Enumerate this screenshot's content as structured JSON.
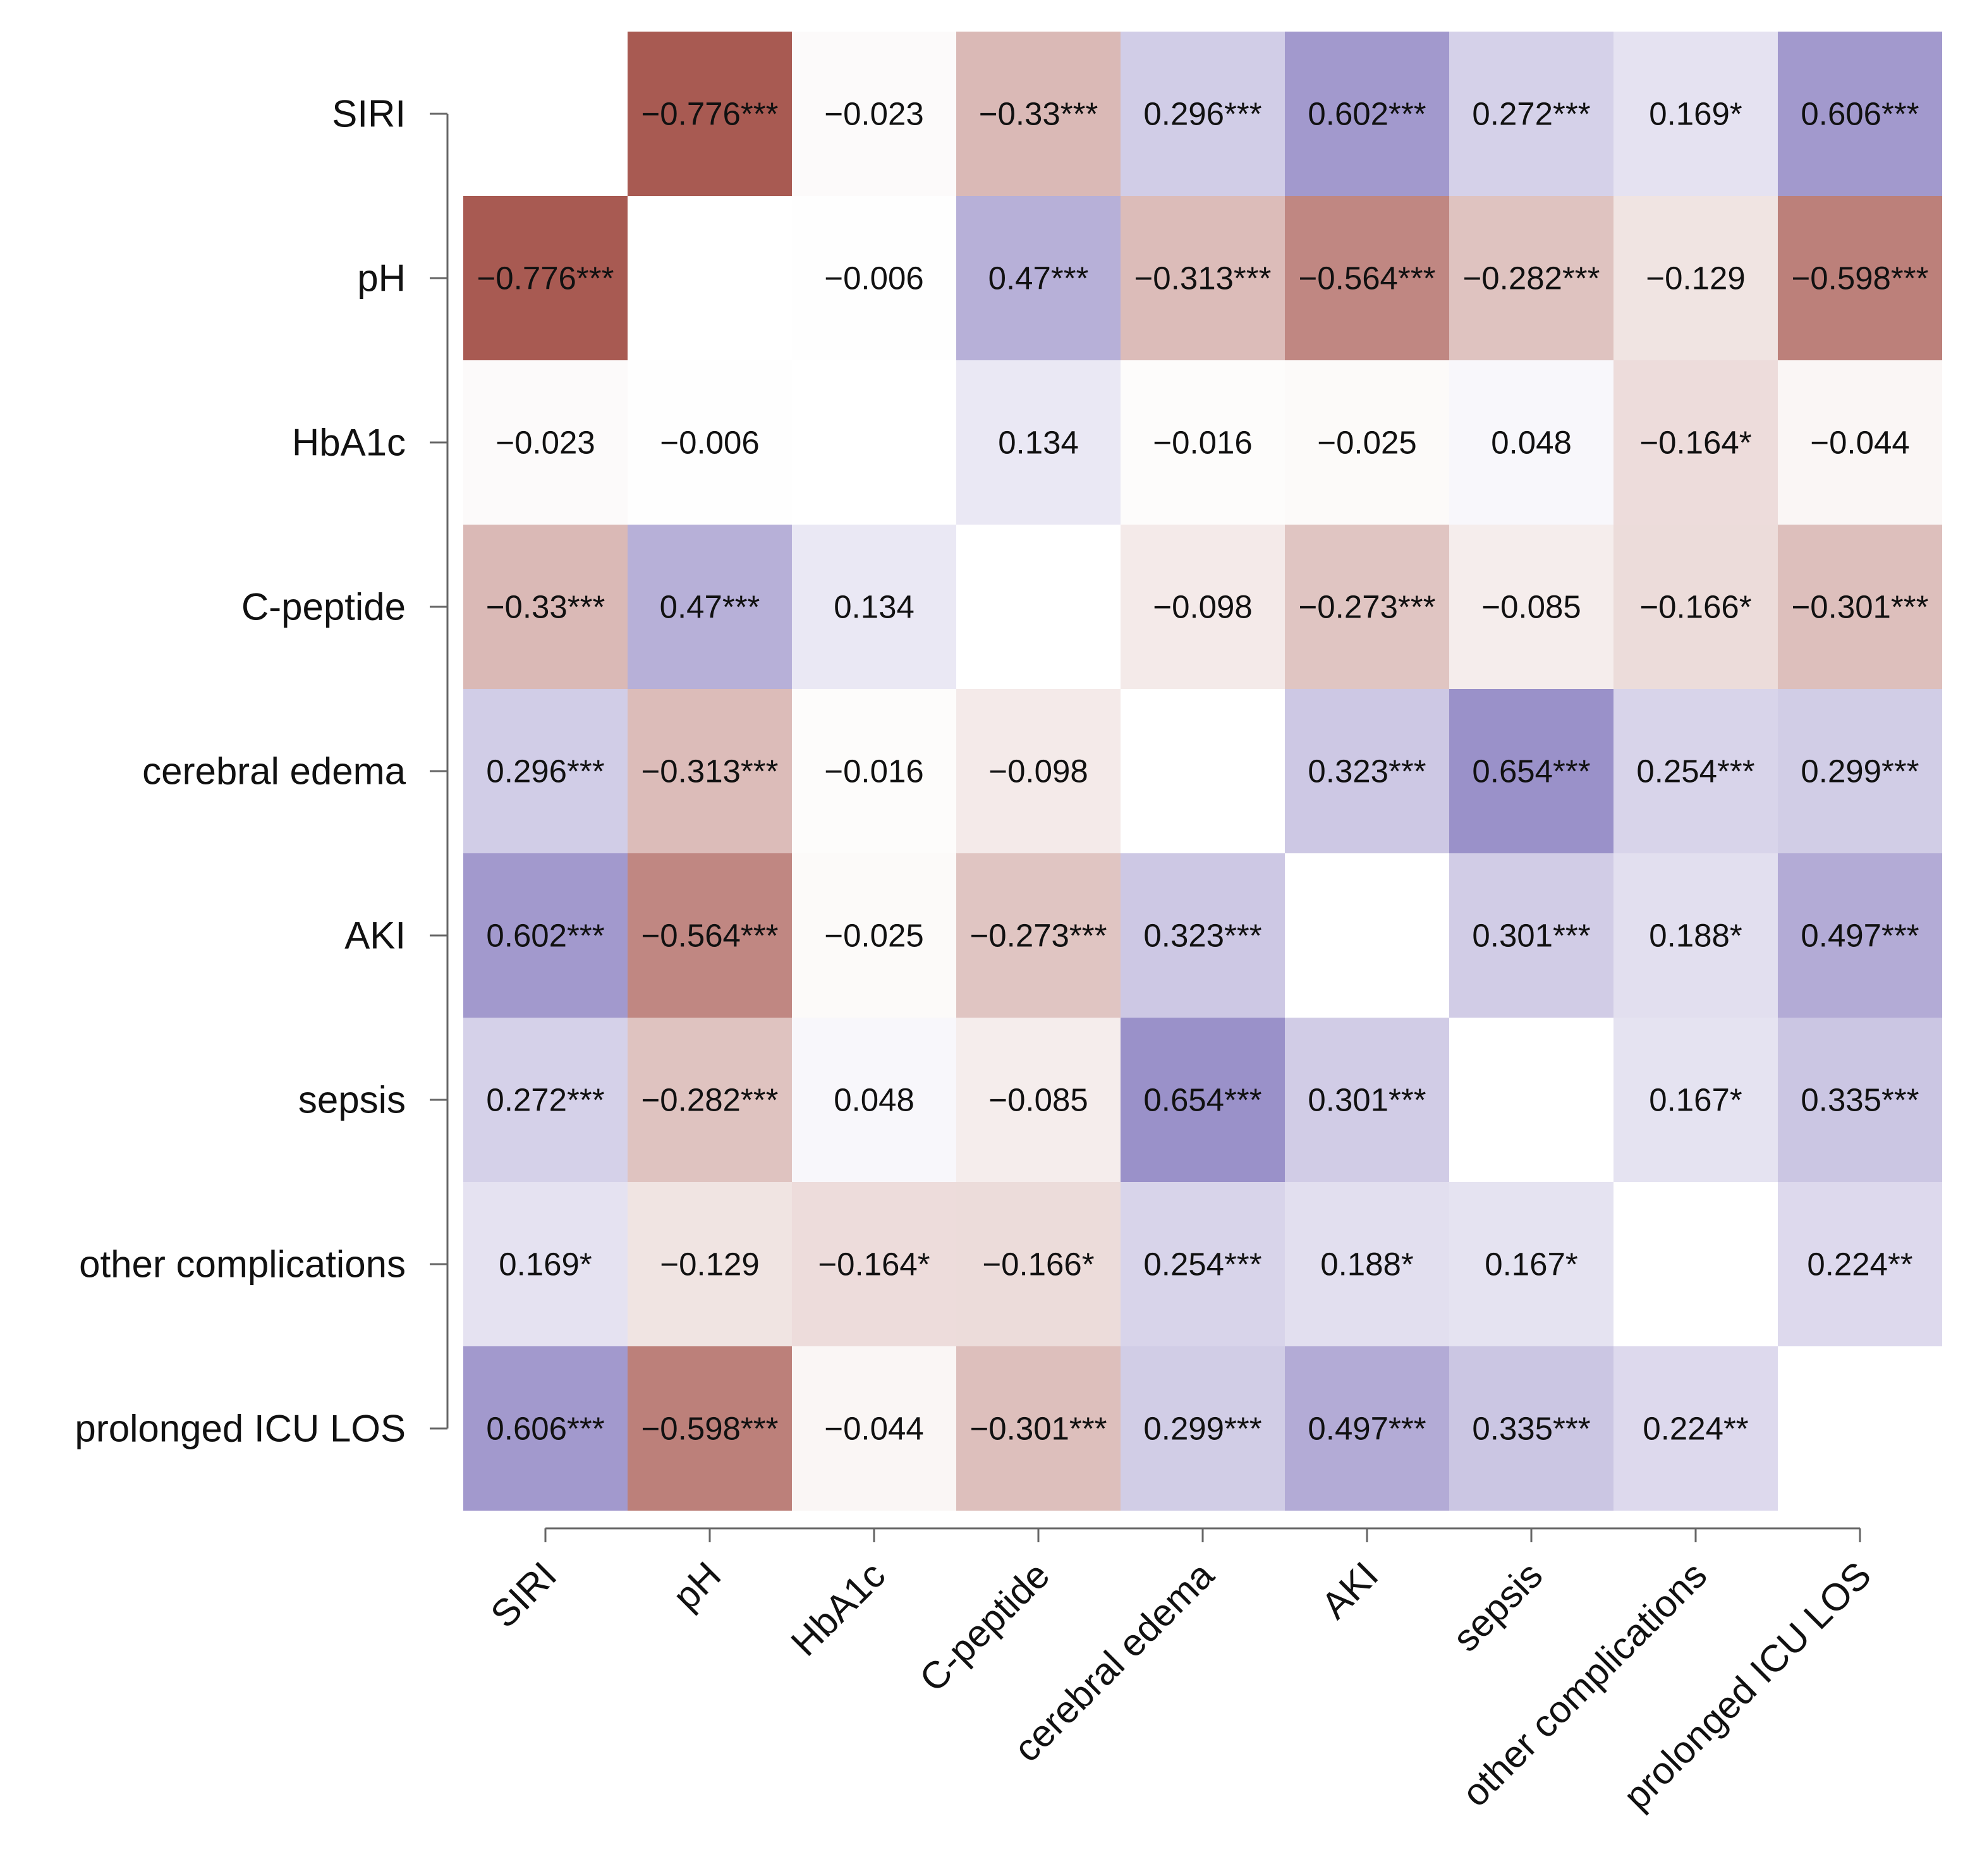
{
  "chart_data": {
    "type": "heatmap",
    "title": "",
    "xlabel": "",
    "ylabel": "",
    "variables": [
      "SIRI",
      "pH",
      "HbA1c",
      "C-peptide",
      "cerebral edema",
      "AKI",
      "sepsis",
      "other complications",
      "prolonged ICU LOS"
    ],
    "values": [
      [
        null,
        -0.776,
        -0.023,
        -0.33,
        0.296,
        0.602,
        0.272,
        0.169,
        0.606
      ],
      [
        -0.776,
        null,
        -0.006,
        0.47,
        -0.313,
        -0.564,
        -0.282,
        -0.129,
        -0.598
      ],
      [
        -0.023,
        -0.006,
        null,
        0.134,
        -0.016,
        -0.025,
        0.048,
        -0.164,
        -0.044
      ],
      [
        -0.33,
        0.47,
        0.134,
        null,
        -0.098,
        -0.273,
        -0.085,
        -0.166,
        -0.301
      ],
      [
        0.296,
        -0.313,
        -0.016,
        -0.098,
        null,
        0.323,
        0.654,
        0.254,
        0.299
      ],
      [
        0.602,
        -0.564,
        -0.025,
        -0.273,
        0.323,
        null,
        0.301,
        0.188,
        0.497
      ],
      [
        0.272,
        -0.282,
        0.048,
        -0.085,
        0.654,
        0.301,
        null,
        0.167,
        0.335
      ],
      [
        0.169,
        -0.129,
        -0.164,
        -0.166,
        0.254,
        0.188,
        0.167,
        null,
        0.224
      ],
      [
        0.606,
        -0.598,
        -0.044,
        -0.301,
        0.299,
        0.497,
        0.335,
        0.224,
        null
      ]
    ],
    "labels": [
      [
        "",
        "−0.776***",
        "−0.023",
        "−0.33***",
        "0.296***",
        "0.602***",
        "0.272***",
        "0.169*",
        "0.606***"
      ],
      [
        "−0.776***",
        "",
        "−0.006",
        "0.47***",
        "−0.313***",
        "−0.564***",
        "−0.282***",
        "−0.129",
        "−0.598***"
      ],
      [
        "−0.023",
        "−0.006",
        "",
        "0.134",
        "−0.016",
        "−0.025",
        "0.048",
        "−0.164*",
        "−0.044"
      ],
      [
        "−0.33***",
        "0.47***",
        "0.134",
        "",
        "−0.098",
        "−0.273***",
        "−0.085",
        "−0.166*",
        "−0.301***"
      ],
      [
        "0.296***",
        "−0.313***",
        "−0.016",
        "−0.098",
        "",
        "0.323***",
        "0.654***",
        "0.254***",
        "0.299***"
      ],
      [
        "0.602***",
        "−0.564***",
        "−0.025",
        "−0.273***",
        "0.323***",
        "",
        "0.301***",
        "0.188*",
        "0.497***"
      ],
      [
        "0.272***",
        "−0.282***",
        "0.048",
        "−0.085",
        "0.654***",
        "0.301***",
        "",
        "0.167*",
        "0.335***"
      ],
      [
        "0.169*",
        "−0.129",
        "−0.164*",
        "−0.166*",
        "0.254***",
        "0.188*",
        "0.167*",
        "",
        "0.224**"
      ],
      [
        "0.606***",
        "−0.598***",
        "−0.044",
        "−0.301***",
        "0.299***",
        "0.497***",
        "0.335***",
        "0.224**",
        ""
      ]
    ],
    "color_range": [
      -0.8,
      0.8
    ],
    "colors": {
      "negative": "#a5554d",
      "positive": "#8478bd",
      "neutral": "#ffffff",
      "text": "#111111",
      "axis": "#666666"
    },
    "grid": false,
    "legend": "none"
  }
}
